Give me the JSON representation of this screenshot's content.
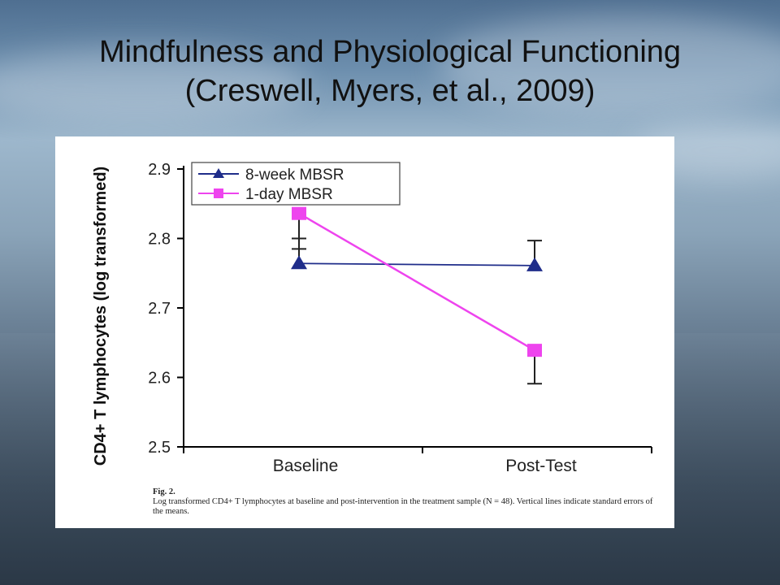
{
  "slide": {
    "title_line1": "Mindfulness and Physiological Functioning",
    "title_line2": "(Creswell, Myers, et al., 2009)"
  },
  "caption": {
    "label": "Fig. 2.",
    "text": "Log transformed CD4+ T lymphocytes at baseline and post-intervention in the treatment sample (N = 48). Vertical lines indicate standard errors of the means."
  },
  "colors": {
    "series_8week": "#1f2d8a",
    "series_1day": "#ee44ee",
    "axis": "#000000"
  },
  "chart_data": {
    "type": "line",
    "title": "",
    "xlabel": "",
    "ylabel": "CD4+ T lymphocytes (log transformed)",
    "categories": [
      "Baseline",
      "Post-Test"
    ],
    "ylim": [
      2.5,
      2.9
    ],
    "yticks": [
      2.5,
      2.6,
      2.7,
      2.8,
      2.9
    ],
    "ytick_labels": [
      "2.5",
      "2.6",
      "2.7",
      "2.8",
      "2.9"
    ],
    "legend_position": "top-left",
    "grid": false,
    "series": [
      {
        "name": "8-week MBSR",
        "marker": "triangle",
        "values": [
          2.764,
          2.761
        ],
        "err_upper": [
          2.8,
          2.797
        ],
        "err_lower": [
          null,
          null
        ]
      },
      {
        "name": "1-day MBSR",
        "marker": "square",
        "values": [
          2.836,
          2.639
        ],
        "err_upper": [
          null,
          null
        ],
        "err_lower": [
          2.785,
          2.591
        ]
      }
    ]
  }
}
